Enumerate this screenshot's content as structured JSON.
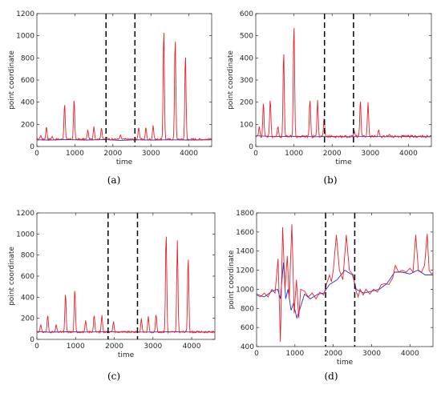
{
  "chart_data": [
    {
      "id": "a",
      "type": "line",
      "caption": "(a)",
      "xlabel": "time",
      "ylabel": "point coordinate",
      "xlim": [
        0,
        4600
      ],
      "ylim": [
        0,
        1200
      ],
      "xticks": [
        0,
        1000,
        2000,
        3000,
        4000
      ],
      "yticks": [
        0,
        200,
        400,
        600,
        800,
        1000,
        1200
      ],
      "grid": false,
      "vlines": [
        1820,
        2580
      ],
      "baseline": 65,
      "series": [
        {
          "color": "#3030c0",
          "values": [
            [
              0,
              60
            ],
            [
              300,
              58
            ],
            [
              800,
              62
            ],
            [
              1300,
              58
            ],
            [
              1800,
              62
            ],
            [
              2200,
              55
            ],
            [
              2600,
              60
            ],
            [
              3000,
              58
            ],
            [
              3500,
              60
            ],
            [
              4000,
              58
            ],
            [
              4600,
              60
            ]
          ]
        },
        {
          "color": "#e8202a",
          "peaks": [
            [
              100,
              100
            ],
            [
              250,
              180
            ],
            [
              400,
              90
            ],
            [
              730,
              390
            ],
            [
              980,
              430
            ],
            [
              1340,
              150
            ],
            [
              1500,
              180
            ],
            [
              1700,
              170
            ],
            [
              1850,
              80
            ],
            [
              2200,
              105
            ],
            [
              2680,
              175
            ],
            [
              2870,
              175
            ],
            [
              3060,
              190
            ],
            [
              3340,
              1075
            ],
            [
              3640,
              990
            ],
            [
              3910,
              840
            ]
          ]
        }
      ]
    },
    {
      "id": "b",
      "type": "line",
      "caption": "(b)",
      "xlabel": "time",
      "ylabel": "point coordinate",
      "xlim": [
        0,
        4600
      ],
      "ylim": [
        0,
        600
      ],
      "xticks": [
        0,
        1000,
        2000,
        3000,
        4000
      ],
      "yticks": [
        0,
        100,
        200,
        300,
        400,
        500,
        600
      ],
      "grid": false,
      "vlines": [
        1800,
        2560
      ],
      "baseline": 45,
      "series": [
        {
          "color": "#3030c0",
          "values": [
            [
              0,
              48
            ],
            [
              500,
              45
            ],
            [
              1000,
              46
            ],
            [
              1500,
              44
            ],
            [
              2000,
              45
            ],
            [
              2500,
              44
            ],
            [
              3000,
              45
            ],
            [
              3500,
              44
            ],
            [
              4000,
              45
            ],
            [
              4600,
              44
            ]
          ]
        },
        {
          "color": "#e8202a",
          "peaks": [
            [
              90,
              90
            ],
            [
              200,
              200
            ],
            [
              380,
              215
            ],
            [
              580,
              90
            ],
            [
              730,
              435
            ],
            [
              1000,
              560
            ],
            [
              1420,
              215
            ],
            [
              1620,
              210
            ],
            [
              1790,
              130
            ],
            [
              2580,
              70
            ],
            [
              2740,
              210
            ],
            [
              2940,
              200
            ],
            [
              3220,
              75
            ],
            [
              3500,
              55
            ]
          ]
        }
      ]
    },
    {
      "id": "c",
      "type": "line",
      "caption": "(c)",
      "xlabel": "time",
      "ylabel": "point coordinate",
      "xlim": [
        0,
        4600
      ],
      "ylim": [
        0,
        1200
      ],
      "xticks": [
        0,
        1000,
        2000,
        3000,
        4000
      ],
      "yticks": [
        0,
        200,
        400,
        600,
        800,
        1000,
        1200
      ],
      "grid": false,
      "vlines": [
        1840,
        2600
      ],
      "baseline": 70,
      "series": [
        {
          "color": "#3030c0",
          "values": [
            [
              0,
              75
            ],
            [
              300,
              68
            ],
            [
              800,
              72
            ],
            [
              1300,
              70
            ],
            [
              1800,
              72
            ],
            [
              2200,
              70
            ],
            [
              2600,
              70
            ],
            [
              3000,
              70
            ],
            [
              3500,
              72
            ],
            [
              4000,
              70
            ],
            [
              4600,
              70
            ]
          ]
        },
        {
          "color": "#e8202a",
          "peaks": [
            [
              100,
              140
            ],
            [
              280,
              230
            ],
            [
              500,
              140
            ],
            [
              740,
              440
            ],
            [
              980,
              480
            ],
            [
              1260,
              180
            ],
            [
              1480,
              230
            ],
            [
              1680,
              230
            ],
            [
              1980,
              170
            ],
            [
              2700,
              200
            ],
            [
              2880,
              220
            ],
            [
              3080,
              240
            ],
            [
              3340,
              1020
            ],
            [
              3630,
              940
            ],
            [
              3910,
              790
            ]
          ]
        }
      ]
    },
    {
      "id": "d",
      "type": "line",
      "caption": "(d)",
      "xlabel": "time",
      "ylabel": "point coordinate",
      "xlim": [
        0,
        4600
      ],
      "ylim": [
        400,
        1800
      ],
      "xticks": [
        0,
        1000,
        2000,
        3000,
        4000
      ],
      "yticks": [
        400,
        600,
        800,
        1000,
        1200,
        1400,
        1600,
        1800
      ],
      "grid": false,
      "vlines": [
        1800,
        2560
      ],
      "series": [
        {
          "color": "#3030c0",
          "values": [
            [
              0,
              950
            ],
            [
              200,
              920
            ],
            [
              400,
              980
            ],
            [
              550,
              1000
            ],
            [
              620,
              900
            ],
            [
              700,
              1280
            ],
            [
              760,
              900
            ],
            [
              820,
              1000
            ],
            [
              900,
              780
            ],
            [
              960,
              850
            ],
            [
              1050,
              700
            ],
            [
              1150,
              820
            ],
            [
              1250,
              950
            ],
            [
              1400,
              900
            ],
            [
              1600,
              950
            ],
            [
              1750,
              960
            ],
            [
              1900,
              1050
            ],
            [
              2100,
              1100
            ],
            [
              2300,
              1200
            ],
            [
              2500,
              1150
            ],
            [
              2600,
              1000
            ],
            [
              2800,
              960
            ],
            [
              3000,
              980
            ],
            [
              3200,
              1000
            ],
            [
              3400,
              1060
            ],
            [
              3600,
              1180
            ],
            [
              3800,
              1180
            ],
            [
              4000,
              1160
            ],
            [
              4200,
              1200
            ],
            [
              4400,
              1150
            ],
            [
              4600,
              1150
            ]
          ]
        },
        {
          "color": "#e8202a",
          "values": [
            [
              0,
              940
            ],
            [
              100,
              920
            ],
            [
              200,
              960
            ],
            [
              300,
              920
            ],
            [
              400,
              1000
            ],
            [
              480,
              960
            ],
            [
              560,
              1320
            ],
            [
              620,
              450
            ],
            [
              680,
              1650
            ],
            [
              740,
              1000
            ],
            [
              800,
              1350
            ],
            [
              850,
              900
            ],
            [
              920,
              1680
            ],
            [
              980,
              750
            ],
            [
              1040,
              1100
            ],
            [
              1100,
              700
            ],
            [
              1150,
              1000
            ],
            [
              1250,
              980
            ],
            [
              1350,
              920
            ],
            [
              1450,
              960
            ],
            [
              1550,
              900
            ],
            [
              1650,
              970
            ],
            [
              1750,
              940
            ],
            [
              1820,
              1050
            ],
            [
              1900,
              1150
            ],
            [
              1950,
              1080
            ],
            [
              2000,
              1200
            ],
            [
              2080,
              1570
            ],
            [
              2160,
              1200
            ],
            [
              2250,
              1100
            ],
            [
              2340,
              1570
            ],
            [
              2420,
              1200
            ],
            [
              2520,
              1150
            ],
            [
              2580,
              1000
            ],
            [
              2650,
              920
            ],
            [
              2700,
              1000
            ],
            [
              2780,
              940
            ],
            [
              2850,
              1000
            ],
            [
              2950,
              950
            ],
            [
              3050,
              1000
            ],
            [
              3150,
              970
            ],
            [
              3250,
              1050
            ],
            [
              3350,
              1060
            ],
            [
              3450,
              1050
            ],
            [
              3550,
              1120
            ],
            [
              3620,
              1250
            ],
            [
              3700,
              1180
            ],
            [
              3800,
              1200
            ],
            [
              3900,
              1180
            ],
            [
              4000,
              1220
            ],
            [
              4080,
              1180
            ],
            [
              4150,
              1570
            ],
            [
              4220,
              1200
            ],
            [
              4300,
              1180
            ],
            [
              4380,
              1250
            ],
            [
              4450,
              1580
            ],
            [
              4500,
              1200
            ],
            [
              4560,
              1160
            ],
            [
              4600,
              1170
            ]
          ]
        }
      ]
    }
  ]
}
